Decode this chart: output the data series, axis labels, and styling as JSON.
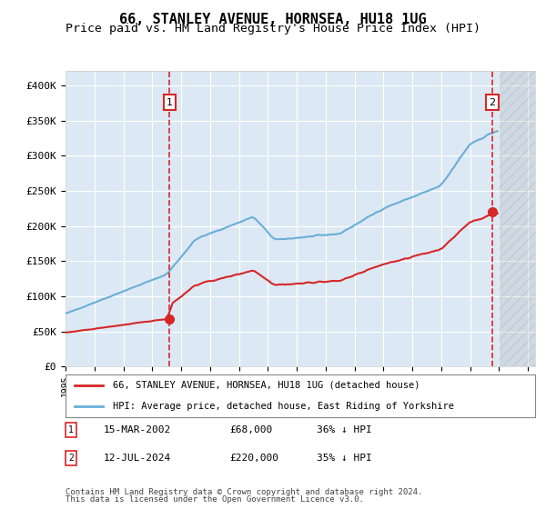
{
  "title": "66, STANLEY AVENUE, HORNSEA, HU18 1UG",
  "subtitle": "Price paid vs. HM Land Registry's House Price Index (HPI)",
  "title_fontsize": 11,
  "subtitle_fontsize": 9.5,
  "background_color": "#dce9f5",
  "plot_bg_color": "#dce9f5",
  "fig_bg_color": "#ffffff",
  "ylabel_ticks": [
    "£0",
    "£50K",
    "£100K",
    "£150K",
    "£200K",
    "£250K",
    "£300K",
    "£350K",
    "£400K"
  ],
  "ytick_values": [
    0,
    50000,
    100000,
    150000,
    200000,
    250000,
    300000,
    350000,
    400000
  ],
  "ylim": [
    0,
    420000
  ],
  "xlim_start": 1995.0,
  "xlim_end": 2027.5,
  "sale1_date": 2002.21,
  "sale1_price": 68000,
  "sale2_date": 2024.53,
  "sale2_price": 220000,
  "hpi_color": "#6baed6",
  "property_color": "#d62728",
  "sale_marker_color": "#d62728",
  "vline_color": "#d62728",
  "legend_label1": "66, STANLEY AVENUE, HORNSEA, HU18 1UG (detached house)",
  "legend_label2": "HPI: Average price, detached house, East Riding of Yorkshire",
  "table_row1": [
    "1",
    "15-MAR-2002",
    "£68,000",
    "36% ↓ HPI"
  ],
  "table_row2": [
    "2",
    "12-JUL-2024",
    "£220,000",
    "35% ↓ HPI"
  ],
  "footer1": "Contains HM Land Registry data © Crown copyright and database right 2024.",
  "footer2": "This data is licensed under the Open Government Licence v3.0.",
  "grid_color": "#ffffff",
  "hatch_start": 2025.0,
  "hatch_color": "#c0c0c0"
}
